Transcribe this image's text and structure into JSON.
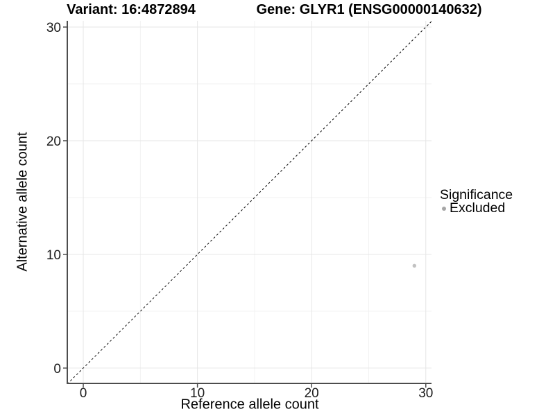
{
  "colors": {
    "background": "#ffffff",
    "grid_major": "#e6e6e6",
    "grid_minor": "#f2f2f2",
    "axis_line": "#4d4d4d",
    "tick_mark": "#4d4d4d",
    "tick_text": "#1a1a1a",
    "title_text": "#000000",
    "point": "#c2c2c2",
    "legend_marker": "#a6a6a6",
    "identity_line": "#000000"
  },
  "chart_data": {
    "type": "scatter",
    "title_variant": "Variant: 16:4872894",
    "title_gene": "Gene: GLYR1 (ENSG00000140632)",
    "xlabel": "Reference allele count",
    "ylabel": "Alternative allele count",
    "xlim": [
      -1.4,
      30.5
    ],
    "ylim": [
      -1.35,
      30.55
    ],
    "x_ticks": [
      0,
      10,
      20,
      30
    ],
    "y_ticks": [
      0,
      10,
      20,
      30
    ],
    "x_minor_ticks": [
      5,
      15,
      25
    ],
    "y_minor_ticks": [
      5,
      15,
      25
    ],
    "grid": "major and minor gridlines, light gray on white panel",
    "legend_position": "right",
    "legend": {
      "title": "Significance",
      "items": [
        {
          "label": "Excluded",
          "marker": "point",
          "marker_color": "#a6a6a6"
        }
      ]
    },
    "series": [
      {
        "name": "Excluded",
        "color": "#c2c2c2",
        "marker": "circle",
        "points": [
          {
            "x": 29,
            "y": 9
          }
        ]
      }
    ],
    "identity_line": {
      "description": "y = x dashed reference line from lower-left to upper-right",
      "style": "dashed",
      "color": "#000000"
    }
  }
}
